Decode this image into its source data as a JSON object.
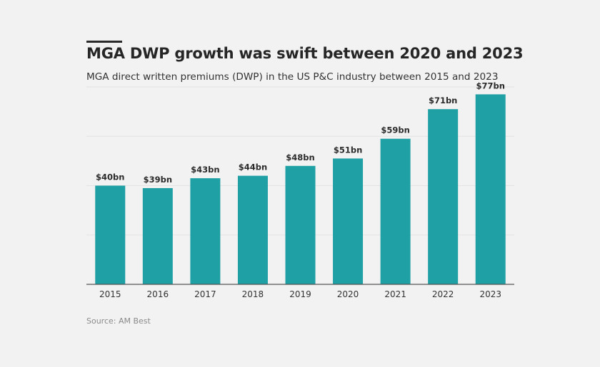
{
  "title": "MGA DWP growth was swift between 2020 and 2023",
  "subtitle": "MGA direct written premiums (DWP) in the US P&C industry between 2015 and 2023",
  "source": "Source: AM Best",
  "colors": {
    "bar": "#1fa0a5",
    "background": "#f2f2f2",
    "text": "#2b2b2b"
  },
  "chart_data": {
    "type": "bar",
    "title": "MGA DWP growth was swift between 2020 and 2023",
    "subtitle": "MGA direct written premiums (DWP) in the US P&C industry between 2015 and 2023",
    "xlabel": "",
    "ylabel": "",
    "unit": "$bn",
    "categories": [
      "2015",
      "2016",
      "2017",
      "2018",
      "2019",
      "2020",
      "2021",
      "2022",
      "2023"
    ],
    "values": [
      40,
      39,
      43,
      44,
      48,
      51,
      59,
      71,
      77
    ],
    "data_labels": [
      "$40bn",
      "$39bn",
      "$43bn",
      "$44bn",
      "$48bn",
      "$51bn",
      "$59bn",
      "$71bn",
      "$77bn"
    ],
    "ylim": [
      0,
      80
    ],
    "grid": true,
    "legend": "none"
  }
}
